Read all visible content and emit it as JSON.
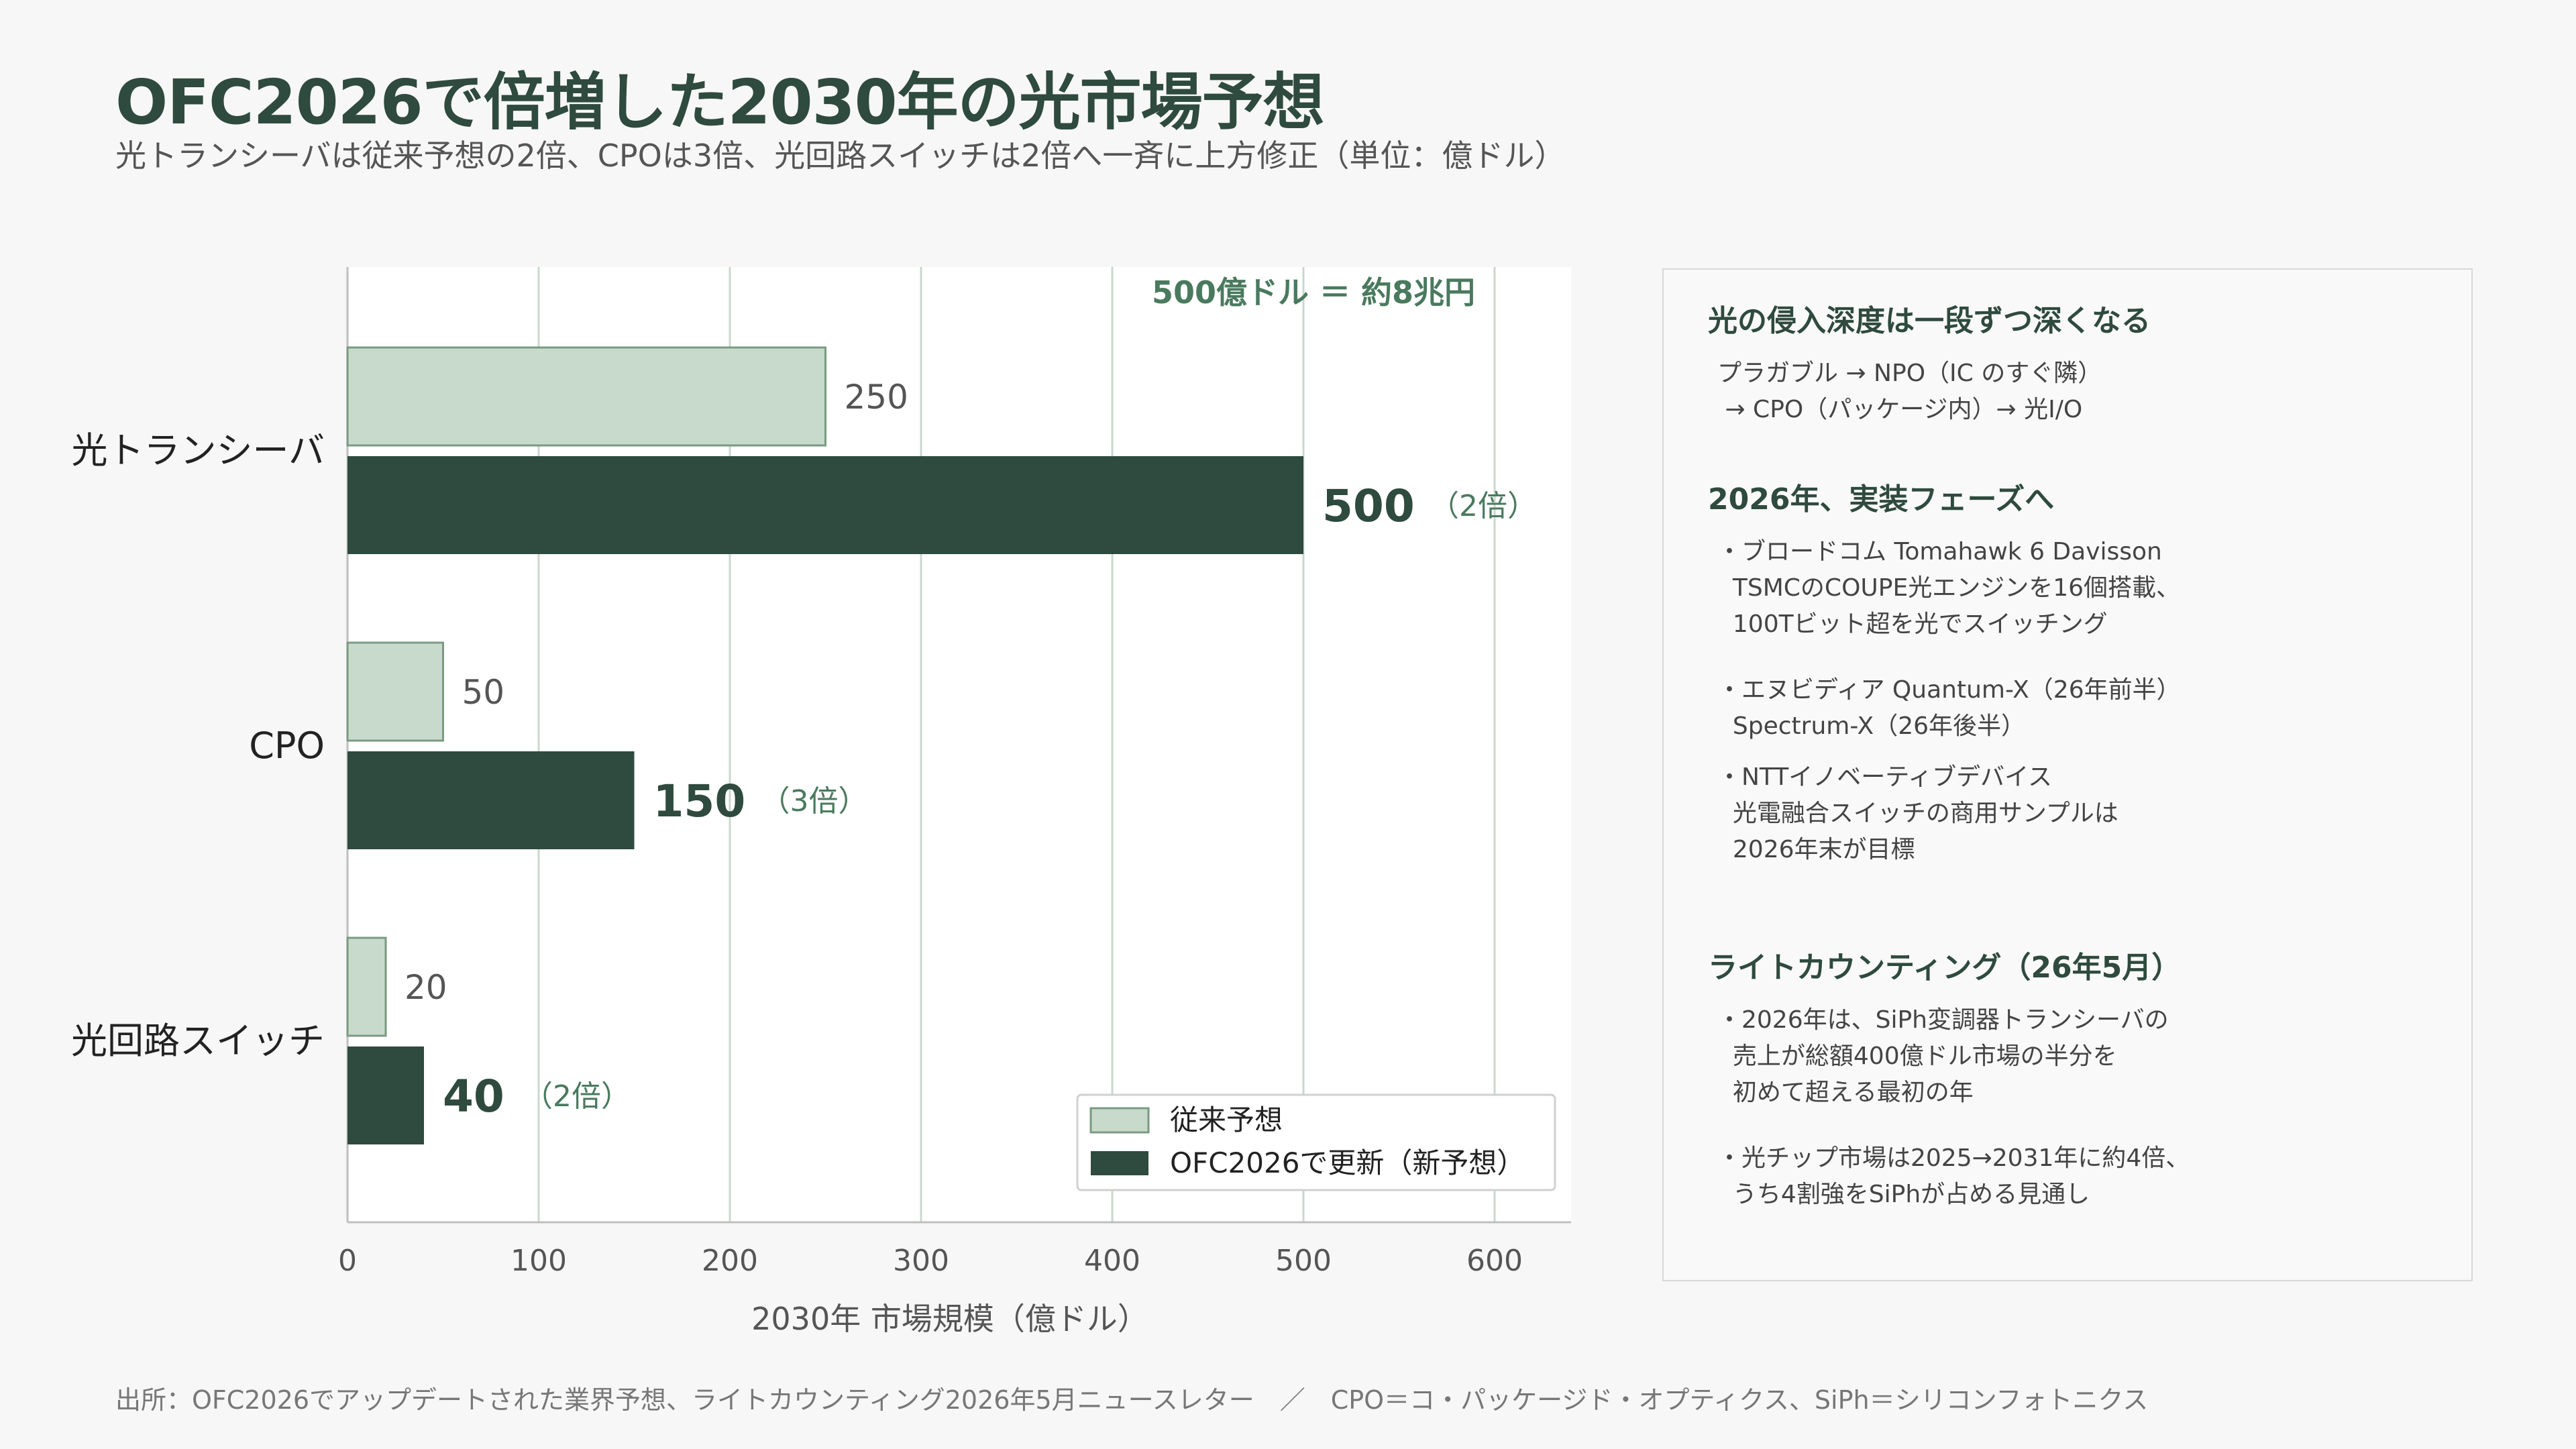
{
  "title": "OFC2026で倍増した2030年の光市場予想",
  "subtitle": "光トランシーバは従来予想の2倍、CPOは3倍、光回路スイッチは2倍へ一斉に上方修正（単位：億ドル）",
  "chart_data": {
    "type": "bar",
    "orientation": "horizontal",
    "categories": [
      "光トランシーバ",
      "CPO",
      "光回路スイッチ"
    ],
    "series": [
      {
        "name": "従来予想",
        "values": [
          250,
          50,
          20
        ],
        "color": "#c8dacb"
      },
      {
        "name": "OFC2026で更新（新予想）",
        "values": [
          500,
          150,
          40
        ],
        "color": "#2f4a3e"
      }
    ],
    "multipliers": [
      "（2倍）",
      "（3倍）",
      "（2倍）"
    ],
    "xlabel": "2030年 市場規模（億ドル）",
    "xlim": [
      0,
      640
    ],
    "xticks": [
      0,
      100,
      200,
      300,
      400,
      500,
      600
    ],
    "grid": true,
    "legend": "bottom-right",
    "annotation": "500億ドル ＝ 約8兆円"
  },
  "side": {
    "sections": [
      {
        "heading": "光の侵入深度は一段ずつ深くなる",
        "items": [
          "プラガブル → NPO（IC のすぐ隣）\n → CPO（パッケージ内）→ 光I/O"
        ]
      },
      {
        "heading": "2026年、実装フェーズへ",
        "items": [
          "・ブロードコム Tomahawk 6 Davisson\n  TSMCのCOUPE光エンジンを16個搭載、\n  100Tビット超を光でスイッチング",
          "・エヌビディア Quantum-X（26年前半）\n  Spectrum-X（26年後半）",
          "・NTTイノベーティブデバイス\n  光電融合スイッチの商用サンプルは\n  2026年末が目標"
        ]
      },
      {
        "heading": "ライトカウンティング（26年5月）",
        "items": [
          "・2026年は、SiPh変調器トランシーバの\n  売上が総額400億ドル市場の半分を\n  初めて超える最初の年",
          "・光チップ市場は2025→2031年に約4倍、\n  うち4割強をSiPhが占める見通し"
        ]
      }
    ]
  },
  "footer": "出所：OFC2026でアップデートされた業界予想、ライトカウンティング2026年5月ニュースレター　／　CPO＝コ・パッケージド・オプティクス、SiPh＝シリコンフォトニクス"
}
